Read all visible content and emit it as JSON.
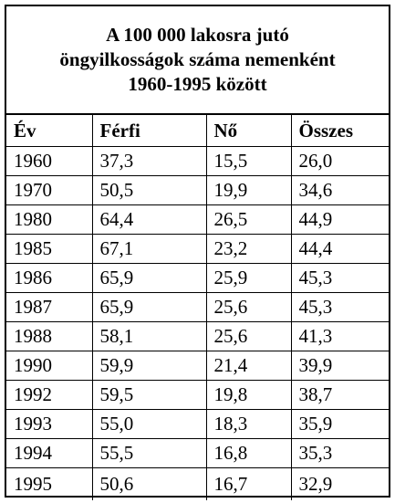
{
  "title": [
    "A 100 000 lakosra jutó",
    "öngyilkosságok száma nemenként",
    "1960-1995 között"
  ],
  "table": {
    "header": [
      "Év",
      "Férfi",
      "Nő",
      "Összes"
    ],
    "rows": [
      [
        "1960",
        "37,3",
        "15,5",
        "26,0"
      ],
      [
        "1970",
        "50,5",
        "19,9",
        "34,6"
      ],
      [
        "1980",
        "64,4",
        "26,5",
        "44,9"
      ],
      [
        "1985",
        "67,1",
        "23,2",
        "44,4"
      ],
      [
        "1986",
        "65,9",
        "25,9",
        "45,3"
      ],
      [
        "1987",
        "65,9",
        "25,6",
        "45,3"
      ],
      [
        "1988",
        "58,1",
        "25,6",
        "41,3"
      ],
      [
        "1990",
        "59,9",
        "21,4",
        "39,9"
      ],
      [
        "1992",
        "59,5",
        "19,8",
        "38,7"
      ],
      [
        "1993",
        "55,0",
        "18,3",
        "35,9"
      ],
      [
        "1994",
        "55,5",
        "16,8",
        "35,3"
      ],
      [
        "1995",
        "50,6",
        "16,7",
        "32,9"
      ]
    ]
  }
}
